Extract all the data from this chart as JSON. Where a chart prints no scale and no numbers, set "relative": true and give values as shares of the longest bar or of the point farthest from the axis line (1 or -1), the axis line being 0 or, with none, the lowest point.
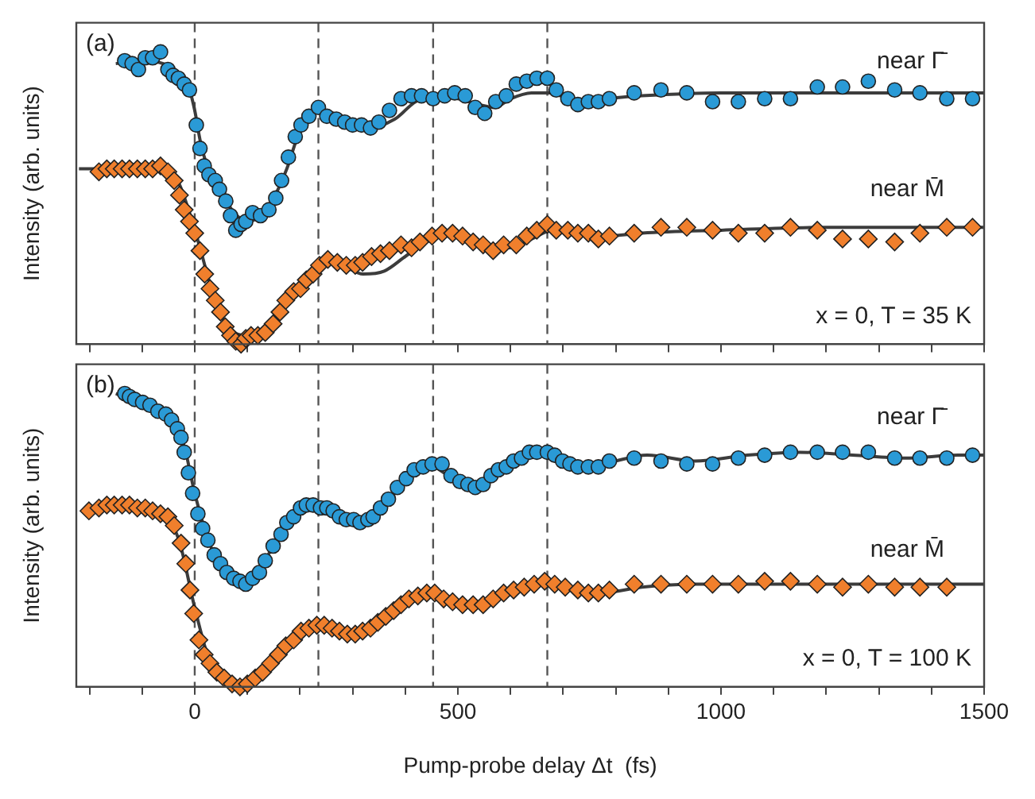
{
  "chart_data": [
    {
      "type": "scatter",
      "ylabel": "Intensity (arb. units)",
      "relative": true,
      "tick_labels": false,
      "grid": false,
      "legend": false,
      "xlim": [
        -225,
        1500
      ],
      "xticks": [
        {
          "value": -200,
          "label": null
        },
        {
          "value": -100,
          "label": null
        },
        0,
        {
          "value": 100,
          "label": null
        },
        {
          "value": 200,
          "label": null
        },
        {
          "value": 300,
          "label": null
        },
        {
          "value": 400,
          "label": null
        },
        500,
        {
          "value": 600,
          "label": null
        },
        {
          "value": 700,
          "label": null
        },
        {
          "value": 800,
          "label": null
        },
        {
          "value": 900,
          "label": null
        },
        1000,
        {
          "value": 1100,
          "label": null
        },
        {
          "value": 1200,
          "label": null
        },
        {
          "value": 1300,
          "label": null
        },
        {
          "value": 1400,
          "label": null
        },
        1500
      ],
      "ref_lines": [
        {
          "axis": "x",
          "value": 0,
          "color": "#555555",
          "line_style": "dashed"
        },
        {
          "axis": "x",
          "value": 235,
          "color": "#555555",
          "line_style": "dashed"
        },
        {
          "axis": "x",
          "value": 453,
          "color": "#555555",
          "line_style": "dashed"
        },
        {
          "axis": "x",
          "value": 670,
          "color": "#555555",
          "line_style": "dashed"
        }
      ],
      "annotations": [
        "(a)",
        "near Γ̄",
        "near M̄",
        "x = 0, T = 35 K"
      ],
      "series": [
        {
          "marker": "circle",
          "color": "#2a9ad6",
          "x": [
            -133,
            -119,
            -107,
            -94,
            -80,
            -65,
            -51,
            -41,
            -31,
            -20,
            -10,
            3,
            10,
            18,
            27,
            39,
            47,
            59,
            68,
            78,
            88,
            97,
            110,
            125,
            141,
            154,
            165,
            178,
            191,
            202,
            217,
            235,
            251,
            269,
            285,
            300,
            317,
            334,
            350,
            370,
            392,
            412,
            431,
            453,
            475,
            494,
            514,
            533,
            551,
            572,
            592,
            611,
            631,
            650,
            670,
            687,
            709,
            728,
            748,
            767,
            788,
            835,
            886,
            935,
            984,
            1033,
            1083,
            1132,
            1183,
            1231,
            1280,
            1330,
            1378,
            1429,
            1478
          ],
          "values": [
            0.97,
            0.96,
            0.94,
            0.98,
            0.98,
            1,
            0.94,
            0.92,
            0.91,
            0.89,
            0.87,
            0.75,
            0.67,
            0.61,
            0.58,
            0.56,
            0.53,
            0.49,
            0.44,
            0.39,
            0.41,
            0.42,
            0.45,
            0.44,
            0.46,
            0.5,
            0.56,
            0.64,
            0.71,
            0.75,
            0.78,
            0.81,
            0.78,
            0.77,
            0.76,
            0.75,
            0.75,
            0.74,
            0.76,
            0.8,
            0.84,
            0.85,
            0.85,
            0.84,
            0.85,
            0.86,
            0.85,
            0.81,
            0.79,
            0.83,
            0.85,
            0.89,
            0.9,
            0.91,
            0.91,
            0.87,
            0.84,
            0.82,
            0.83,
            0.83,
            0.84,
            0.86,
            0.87,
            0.86,
            0.83,
            0.83,
            0.84,
            0.84,
            0.88,
            0.88,
            0.9,
            0.87,
            0.86,
            0.84,
            0.84
          ]
        },
        {
          "marker": "diamond",
          "color": "#f07f2c",
          "x": [
            -182,
            -167,
            -153,
            -138,
            -124,
            -109,
            -94,
            -80,
            -65,
            -51,
            -39,
            -29,
            -20,
            -10,
            0,
            10,
            19,
            29,
            39,
            49,
            58,
            68,
            78,
            88,
            97,
            107,
            120,
            134,
            149,
            162,
            173,
            188,
            201,
            212,
            225,
            237,
            253,
            271,
            288,
            305,
            319,
            336,
            353,
            370,
            392,
            412,
            428,
            451,
            470,
            490,
            509,
            529,
            548,
            567,
            587,
            611,
            631,
            650,
            670,
            687,
            709,
            728,
            748,
            767,
            788,
            835,
            886,
            935,
            984,
            1033,
            1083,
            1132,
            1183,
            1231,
            1280,
            1330,
            1378,
            1429,
            1478
          ],
          "values": [
            0.59,
            0.6,
            0.6,
            0.6,
            0.6,
            0.6,
            0.6,
            0.6,
            0.61,
            0.59,
            0.56,
            0.51,
            0.46,
            0.42,
            0.38,
            0.32,
            0.24,
            0.19,
            0.15,
            0.11,
            0.06,
            0.03,
            0.01,
            0,
            0.02,
            0.03,
            0.03,
            0.04,
            0.07,
            0.11,
            0.15,
            0.18,
            0.19,
            0.22,
            0.24,
            0.27,
            0.29,
            0.28,
            0.27,
            0.27,
            0.28,
            0.3,
            0.31,
            0.32,
            0.34,
            0.33,
            0.35,
            0.37,
            0.38,
            0.38,
            0.37,
            0.35,
            0.34,
            0.32,
            0.34,
            0.34,
            0.37,
            0.39,
            0.41,
            0.39,
            0.39,
            0.38,
            0.38,
            0.36,
            0.37,
            0.38,
            0.4,
            0.4,
            0.39,
            0.38,
            0.38,
            0.4,
            0.39,
            0.36,
            0.36,
            0.35,
            0.38,
            0.4,
            0.4
          ]
        },
        {
          "type": "line",
          "marker": "none",
          "color": "#3c3c3c",
          "x": [
            -150,
            -100,
            -60,
            -30,
            -10,
            0,
            10,
            20,
            35,
            50,
            75,
            100,
            125,
            150,
            175,
            200,
            240,
            280,
            330,
            380,
            420,
            460,
            500,
            540,
            570,
            600,
            640,
            680,
            720,
            780,
            850,
            1000,
            1200,
            1500
          ],
          "values": [
            0.96,
            0.97,
            0.96,
            0.92,
            0.87,
            0.8,
            0.7,
            0.63,
            0.57,
            0.52,
            0.45,
            0.42,
            0.44,
            0.5,
            0.6,
            0.73,
            0.8,
            0.78,
            0.74,
            0.77,
            0.83,
            0.85,
            0.84,
            0.82,
            0.81,
            0.84,
            0.86,
            0.86,
            0.83,
            0.84,
            0.85,
            0.86,
            0.86,
            0.86
          ]
        },
        {
          "type": "line",
          "marker": "none",
          "color": "#3c3c3c",
          "x": [
            -220,
            -150,
            -80,
            -50,
            -30,
            -10,
            10,
            30,
            50,
            75,
            100,
            125,
            150,
            175,
            200,
            240,
            280,
            320,
            360,
            400,
            440,
            480,
            520,
            560,
            600,
            640,
            680,
            720,
            780,
            850,
            1000,
            1200,
            1500
          ],
          "values": [
            0.6,
            0.6,
            0.6,
            0.59,
            0.55,
            0.45,
            0.33,
            0.2,
            0.1,
            0.04,
            0.03,
            0.05,
            0.08,
            0.14,
            0.2,
            0.28,
            0.27,
            0.24,
            0.25,
            0.3,
            0.35,
            0.37,
            0.36,
            0.34,
            0.33,
            0.36,
            0.39,
            0.38,
            0.37,
            0.38,
            0.39,
            0.4,
            0.4
          ]
        }
      ]
    },
    {
      "type": "scatter",
      "ylabel": "Intensity (arb. units)",
      "xlabel": "Pump-probe delay Δt  (fs)",
      "relative": true,
      "tick_labels": "x",
      "grid": false,
      "legend": false,
      "xlim": [
        -225,
        1500
      ],
      "xticks": [
        {
          "value": -200,
          "label": null
        },
        {
          "value": -100,
          "label": null
        },
        0,
        {
          "value": 100,
          "label": null
        },
        {
          "value": 200,
          "label": null
        },
        {
          "value": 300,
          "label": null
        },
        {
          "value": 400,
          "label": null
        },
        500,
        {
          "value": 600,
          "label": null
        },
        {
          "value": 700,
          "label": null
        },
        {
          "value": 800,
          "label": null
        },
        {
          "value": 900,
          "label": null
        },
        1000,
        {
          "value": 1100,
          "label": null
        },
        {
          "value": 1200,
          "label": null
        },
        {
          "value": 1300,
          "label": null
        },
        {
          "value": 1400,
          "label": null
        },
        1500
      ],
      "ref_lines": [
        {
          "axis": "x",
          "value": 0,
          "color": "#555555",
          "line_style": "dashed"
        },
        {
          "axis": "x",
          "value": 235,
          "color": "#555555",
          "line_style": "dashed"
        },
        {
          "axis": "x",
          "value": 453,
          "color": "#555555",
          "line_style": "dashed"
        },
        {
          "axis": "x",
          "value": 670,
          "color": "#555555",
          "line_style": "dashed"
        }
      ],
      "annotations": [
        "(b)",
        "near Γ̄",
        "near M̄",
        "x = 0, T = 100 K"
      ],
      "series": [
        {
          "marker": "circle",
          "color": "#2a9ad6",
          "x": [
            -133,
            -124,
            -114,
            -99,
            -85,
            -70,
            -55,
            -44,
            -33,
            -26,
            -20,
            -12,
            -4,
            6,
            15,
            25,
            37,
            49,
            61,
            74,
            86,
            97,
            110,
            123,
            134,
            149,
            164,
            175,
            188,
            201,
            212,
            225,
            239,
            251,
            263,
            275,
            288,
            302,
            314,
            329,
            339,
            353,
            368,
            385,
            402,
            417,
            434,
            451,
            470,
            487,
            504,
            519,
            533,
            548,
            563,
            577,
            592,
            606,
            621,
            636,
            650,
            670,
            684,
            699,
            713,
            728,
            748,
            767,
            788,
            835,
            886,
            935,
            984,
            1033,
            1083,
            1132,
            1183,
            1231,
            1280,
            1330,
            1378,
            1429,
            1478
          ],
          "values": [
            1,
            0.99,
            0.98,
            0.97,
            0.96,
            0.94,
            0.93,
            0.91,
            0.88,
            0.85,
            0.8,
            0.73,
            0.66,
            0.59,
            0.54,
            0.5,
            0.45,
            0.42,
            0.39,
            0.37,
            0.36,
            0.35,
            0.37,
            0.39,
            0.43,
            0.48,
            0.52,
            0.56,
            0.58,
            0.61,
            0.62,
            0.62,
            0.61,
            0.61,
            0.6,
            0.58,
            0.57,
            0.57,
            0.56,
            0.57,
            0.58,
            0.61,
            0.64,
            0.68,
            0.71,
            0.74,
            0.75,
            0.76,
            0.76,
            0.72,
            0.7,
            0.69,
            0.68,
            0.69,
            0.72,
            0.74,
            0.75,
            0.77,
            0.78,
            0.8,
            0.8,
            0.8,
            0.79,
            0.77,
            0.76,
            0.75,
            0.75,
            0.75,
            0.77,
            0.78,
            0.77,
            0.76,
            0.76,
            0.78,
            0.79,
            0.8,
            0.8,
            0.8,
            0.8,
            0.78,
            0.78,
            0.78,
            0.79
          ]
        },
        {
          "marker": "diamond",
          "color": "#f07f2c",
          "x": [
            -201,
            -182,
            -167,
            -153,
            -138,
            -124,
            -109,
            -94,
            -80,
            -65,
            -51,
            -39,
            -26,
            -17,
            -9,
            -2,
            8,
            18,
            29,
            42,
            56,
            71,
            86,
            100,
            115,
            129,
            144,
            159,
            173,
            188,
            202,
            217,
            232,
            246,
            261,
            275,
            290,
            305,
            319,
            334,
            348,
            363,
            378,
            392,
            407,
            424,
            441,
            456,
            473,
            490,
            509,
            529,
            548,
            567,
            587,
            606,
            626,
            645,
            665,
            684,
            704,
            728,
            748,
            767,
            788,
            835,
            886,
            935,
            984,
            1033,
            1083,
            1132,
            1183,
            1231,
            1280,
            1330,
            1378,
            1429
          ],
          "values": [
            0.6,
            0.61,
            0.62,
            0.62,
            0.62,
            0.62,
            0.61,
            0.61,
            0.6,
            0.59,
            0.58,
            0.55,
            0.49,
            0.42,
            0.33,
            0.25,
            0.16,
            0.11,
            0.08,
            0.05,
            0.03,
            0.01,
            0,
            0.01,
            0.03,
            0.05,
            0.08,
            0.11,
            0.14,
            0.16,
            0.19,
            0.2,
            0.21,
            0.21,
            0.2,
            0.19,
            0.18,
            0.18,
            0.19,
            0.2,
            0.22,
            0.24,
            0.26,
            0.28,
            0.3,
            0.31,
            0.32,
            0.32,
            0.3,
            0.29,
            0.28,
            0.28,
            0.28,
            0.3,
            0.32,
            0.33,
            0.34,
            0.35,
            0.36,
            0.35,
            0.34,
            0.33,
            0.32,
            0.32,
            0.33,
            0.35,
            0.35,
            0.35,
            0.35,
            0.35,
            0.36,
            0.36,
            0.35,
            0.34,
            0.35,
            0.34,
            0.34,
            0.34
          ]
        },
        {
          "type": "line",
          "marker": "none",
          "color": "#3c3c3c",
          "x": [
            -150,
            -100,
            -50,
            -20,
            0,
            30,
            60,
            95,
            130,
            170,
            220,
            270,
            320,
            370,
            440,
            490,
            530,
            580,
            660,
            700,
            760,
            800,
            860,
            950,
            1050,
            1150,
            1250,
            1350,
            1450,
            1500
          ],
          "values": [
            1,
            0.97,
            0.93,
            0.82,
            0.66,
            0.48,
            0.39,
            0.35,
            0.42,
            0.55,
            0.62,
            0.59,
            0.56,
            0.64,
            0.76,
            0.71,
            0.68,
            0.74,
            0.8,
            0.78,
            0.75,
            0.77,
            0.79,
            0.77,
            0.79,
            0.8,
            0.79,
            0.78,
            0.79,
            0.79
          ]
        },
        {
          "type": "line",
          "marker": "none",
          "color": "#3c3c3c",
          "x": [
            -200,
            -120,
            -60,
            -30,
            0,
            30,
            70,
            100,
            150,
            230,
            280,
            330,
            400,
            450,
            510,
            560,
            650,
            720,
            770,
            850,
            950,
            1050,
            1200,
            1350,
            1500
          ],
          "values": [
            0.61,
            0.61,
            0.59,
            0.5,
            0.27,
            0.08,
            0.01,
            0.01,
            0.08,
            0.21,
            0.19,
            0.2,
            0.29,
            0.32,
            0.28,
            0.29,
            0.35,
            0.34,
            0.32,
            0.34,
            0.35,
            0.35,
            0.35,
            0.35,
            0.35
          ]
        }
      ]
    }
  ]
}
